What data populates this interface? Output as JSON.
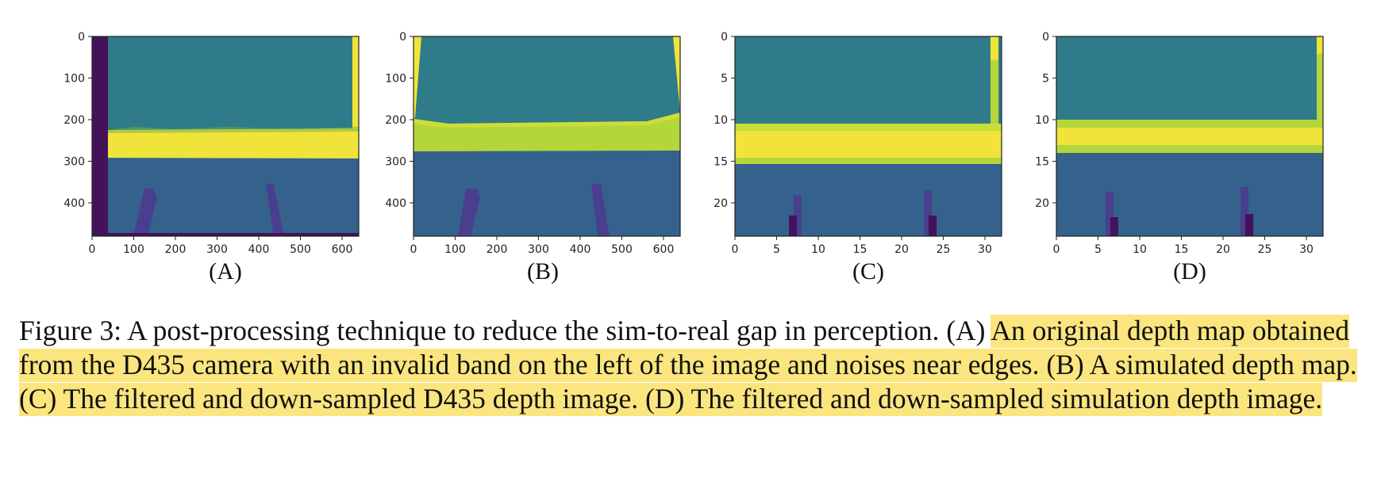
{
  "figure": {
    "panels": [
      {
        "id": "A",
        "label": "(A)",
        "x_ticks": [
          "0",
          "100",
          "200",
          "300",
          "400",
          "500",
          "600"
        ],
        "y_ticks": [
          "0",
          "100",
          "200",
          "300",
          "400"
        ],
        "x_range": [
          0,
          640
        ],
        "y_range": [
          0,
          480
        ]
      },
      {
        "id": "B",
        "label": "(B)",
        "x_ticks": [
          "0",
          "100",
          "200",
          "300",
          "400",
          "500",
          "600"
        ],
        "y_ticks": [
          "0",
          "100",
          "200",
          "300",
          "400"
        ],
        "x_range": [
          0,
          640
        ],
        "y_range": [
          0,
          480
        ]
      },
      {
        "id": "C",
        "label": "(C)",
        "x_ticks": [
          "0",
          "5",
          "10",
          "15",
          "20",
          "25",
          "30"
        ],
        "y_ticks": [
          "0",
          "5",
          "10",
          "15",
          "20"
        ],
        "x_range": [
          0,
          32
        ],
        "y_range": [
          0,
          24
        ]
      },
      {
        "id": "D",
        "label": "(D)",
        "x_ticks": [
          "0",
          "5",
          "10",
          "15",
          "20",
          "25",
          "30"
        ],
        "y_ticks": [
          "0",
          "5",
          "10",
          "15",
          "20"
        ],
        "x_range": [
          0,
          32
        ],
        "y_range": [
          0,
          24
        ]
      }
    ],
    "colors": {
      "teal": "#2f7b8a",
      "blue": "#34628c",
      "yellow": "#f0e33a",
      "lime": "#b5d63a",
      "purple": "#44125a",
      "violet": "#4a3f8e"
    }
  },
  "caption": {
    "prefix": "Figure 3: A post-processing technique to reduce the sim-to-real gap in perception. (A) ",
    "highlighted": "An original depth map obtained from the D435 camera with an invalid band on the left of the image and noises near edges. (B) A simulated depth map. (C) The filtered and down-sampled D435 depth image. (D) The filtered and down-sampled simulation depth image."
  }
}
